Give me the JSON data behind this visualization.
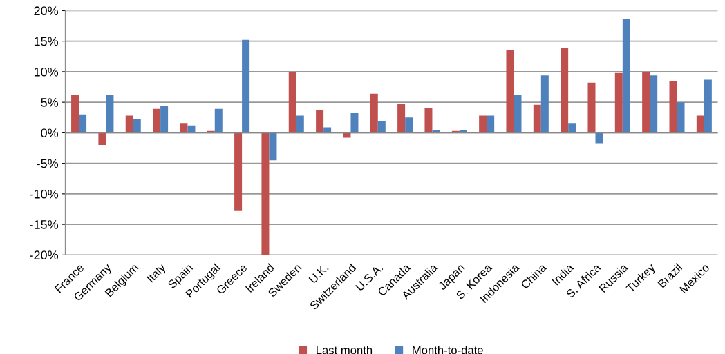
{
  "chart_data": {
    "type": "bar",
    "categories": [
      "France",
      "Germany",
      "Belgium",
      "Italy",
      "Spain",
      "Portugal",
      "Greece",
      "Ireland",
      "Sweden",
      "U.K.",
      "Switzerland",
      "U.S.A.",
      "Canada",
      "Australia",
      "Japan",
      "S. Korea",
      "Indonesia",
      "China",
      "India",
      "S. Africa",
      "Russia",
      "Turkey",
      "Brazil",
      "Mexico"
    ],
    "series": [
      {
        "name": "Last month",
        "color": "#c0504d",
        "values": [
          6.2,
          -2.0,
          2.8,
          3.9,
          1.6,
          0.3,
          -12.8,
          -20,
          10.0,
          3.7,
          -0.8,
          6.4,
          4.8,
          4.1,
          0.3,
          2.8,
          13.6,
          4.6,
          13.9,
          8.2,
          9.8,
          10.0,
          8.4,
          2.8
        ]
      },
      {
        "name": "Month-to-date",
        "color": "#4f81bd",
        "values": [
          3.0,
          6.2,
          2.3,
          4.4,
          1.2,
          3.9,
          15.2,
          -4.5,
          2.8,
          0.9,
          3.2,
          1.9,
          2.5,
          0.5,
          0.5,
          2.8,
          6.2,
          9.4,
          1.6,
          -1.7,
          18.6,
          9.4,
          5.0,
          8.7
        ]
      }
    ],
    "ylim": [
      -20,
      20
    ],
    "yticks": [
      {
        "value": -20,
        "label": "-20%"
      },
      {
        "value": -15,
        "label": "-15%"
      },
      {
        "value": -10,
        "label": "-10%"
      },
      {
        "value": -5,
        "label": "-5%"
      },
      {
        "value": 0,
        "label": "0%"
      },
      {
        "value": 5,
        "label": "5%"
      },
      {
        "value": 10,
        "label": "10%"
      },
      {
        "value": 15,
        "label": "15%"
      },
      {
        "value": 20,
        "label": "20%"
      }
    ],
    "grid": "y",
    "legend": "bottom"
  }
}
